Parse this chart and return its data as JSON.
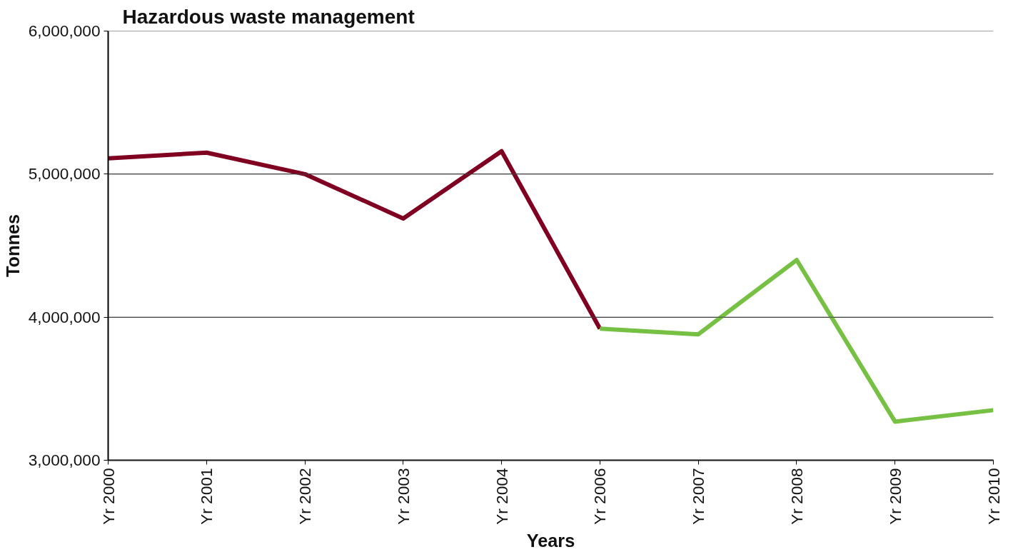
{
  "chart_data": {
    "type": "line",
    "title": "Hazardous waste management",
    "xlabel": "Years",
    "ylabel": "Tonnes",
    "categories": [
      "Yr 2000",
      "Yr 2001",
      "Yr 2002",
      "Yr 2003",
      "Yr 2004",
      "Yr 2006",
      "Yr 2007",
      "Yr 2008",
      "Yr 2009",
      "Yr 2010"
    ],
    "series": [
      {
        "color": "#7f0020",
        "values": [
          5110000,
          5150000,
          5000000,
          4690000,
          5160000,
          3920000,
          null,
          null,
          null,
          null
        ]
      },
      {
        "color": "#76c043",
        "values": [
          null,
          null,
          null,
          null,
          null,
          3920000,
          3880000,
          4400000,
          3270000,
          3350000
        ]
      }
    ],
    "ylim": [
      3000000,
      6000000
    ],
    "yticks": [
      {
        "value": 3000000,
        "label": "3,000,000"
      },
      {
        "value": 4000000,
        "label": "4,000,000"
      },
      {
        "value": 5000000,
        "label": "5,000,000"
      },
      {
        "value": 6000000,
        "label": "6,000,000"
      }
    ],
    "grid": "y",
    "marker": "none",
    "line_style": "solid"
  }
}
